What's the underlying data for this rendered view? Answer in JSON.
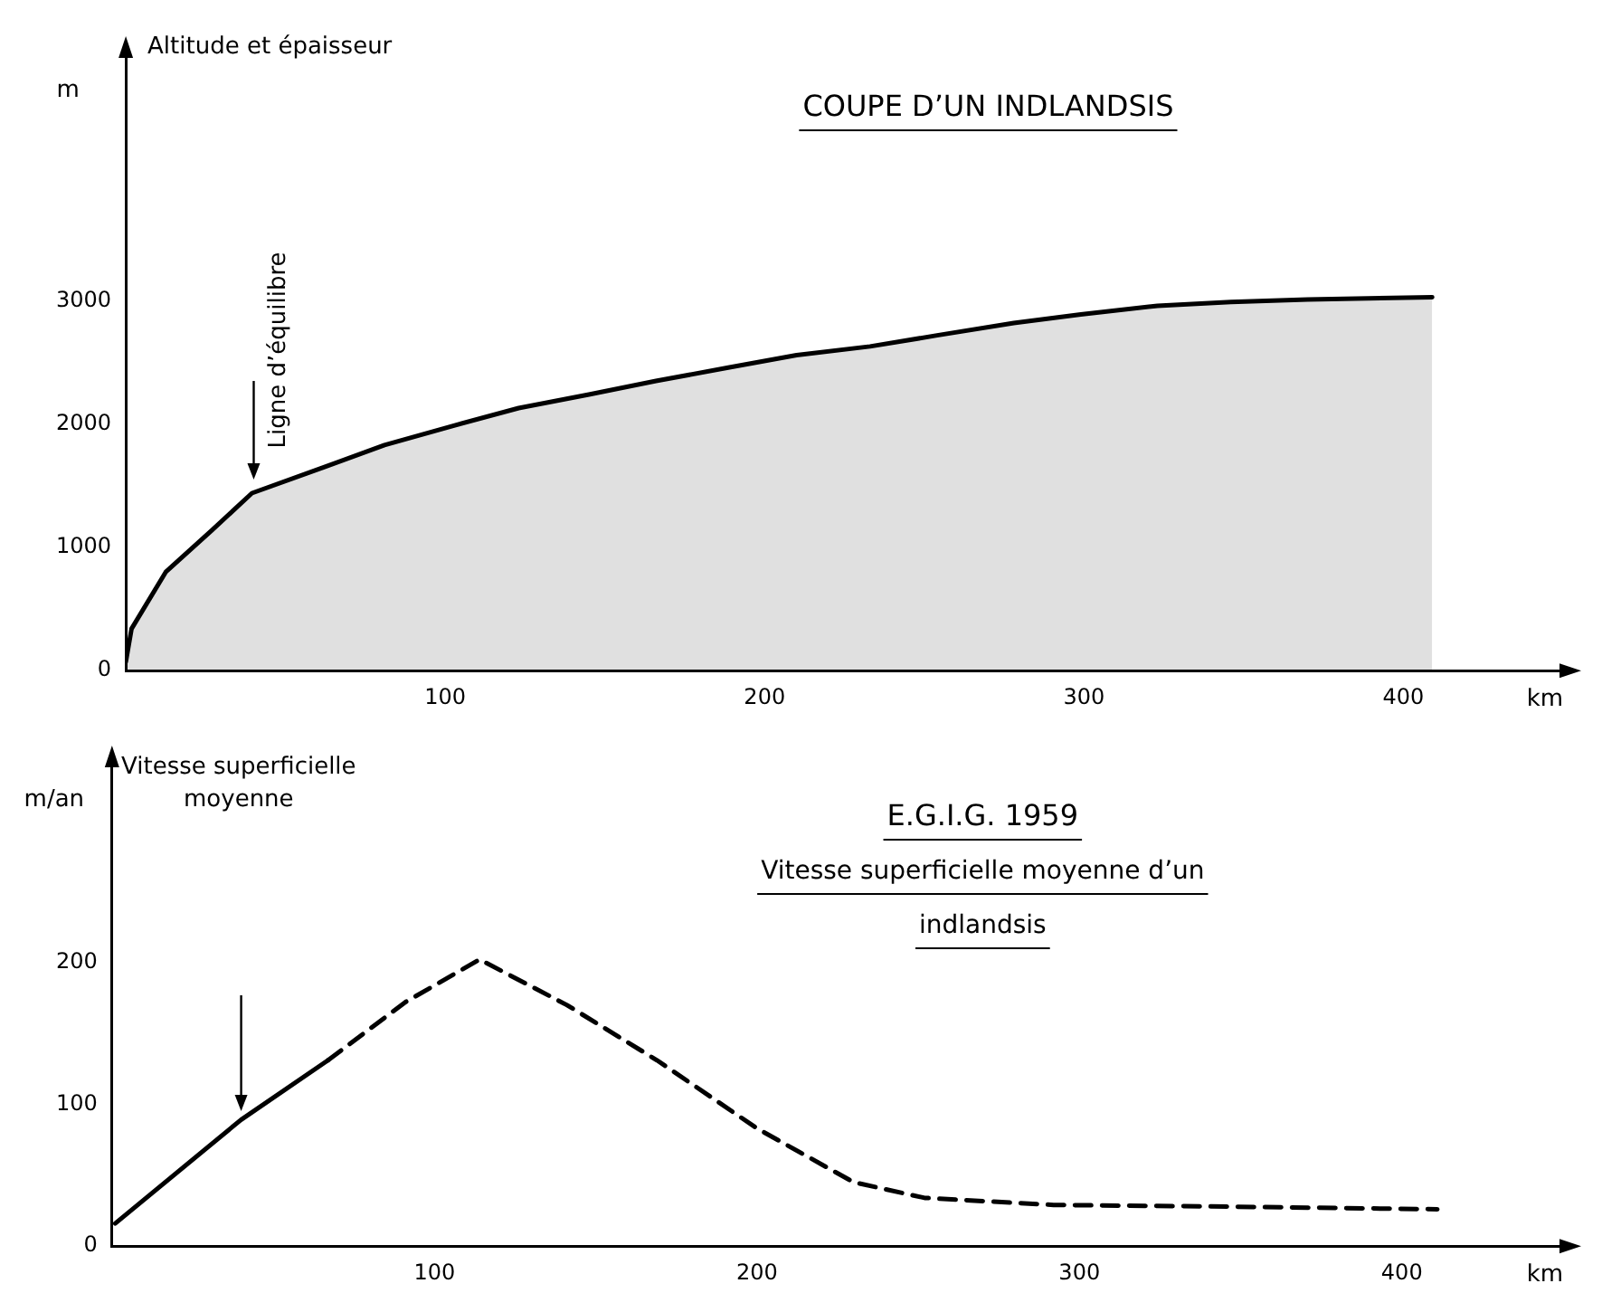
{
  "chart_data": [
    {
      "type": "area",
      "title": "COUPE D’UN INDLANDSIS",
      "xlabel": "km",
      "ylabel": "m",
      "annotations": [
        "Altitude et épaisseur",
        "Ligne d’équilibre"
      ],
      "series": [
        {
          "color": "#000000",
          "x": [
            0,
            1.8,
            12.5,
            27,
            39.5,
            62,
            81,
            103,
            123,
            145,
            166,
            189,
            210,
            233,
            254,
            278,
            299,
            323,
            346,
            370,
            409
          ],
          "values": [
            70,
            340,
            800,
            1140,
            1440,
            1650,
            1830,
            1990,
            2130,
            2240,
            2350,
            2460,
            2560,
            2630,
            2720,
            2820,
            2890,
            2960,
            2990,
            3010,
            3030
          ]
        }
      ],
      "xlim": [
        0,
        450
      ],
      "ylim": [
        0,
        5000
      ],
      "xticks": [
        100,
        200,
        300,
        400
      ],
      "yticks": [
        0,
        1000,
        2000,
        3000
      ],
      "grid": false,
      "marker": "none"
    },
    {
      "type": "line",
      "title": "E.G.I.G. 1959",
      "subtitle": "Vitesse superficielle moyenne d’un indlandsis",
      "xlabel": "km",
      "ylabel": "m/an",
      "annotations": [
        "Vitesse superficielle moyenne"
      ],
      "series": [
        {
          "color": "#000000",
          "line_style": "solid",
          "x": [
            1,
            40,
            67
          ],
          "values": [
            16,
            89,
            131
          ]
        },
        {
          "color": "#000000",
          "line_style": "dashed",
          "x": [
            67,
            91,
            114,
            141,
            169,
            200,
            230,
            252,
            292,
            339,
            411
          ],
          "values": [
            131,
            172,
            202,
            170,
            131,
            83,
            45,
            34,
            29,
            28,
            26
          ]
        }
      ],
      "xlim": [
        0,
        450
      ],
      "ylim": [
        0,
        340
      ],
      "xticks": [
        100,
        200,
        300,
        400
      ],
      "yticks": [
        0,
        100,
        200
      ],
      "grid": false,
      "marker": "none"
    }
  ]
}
